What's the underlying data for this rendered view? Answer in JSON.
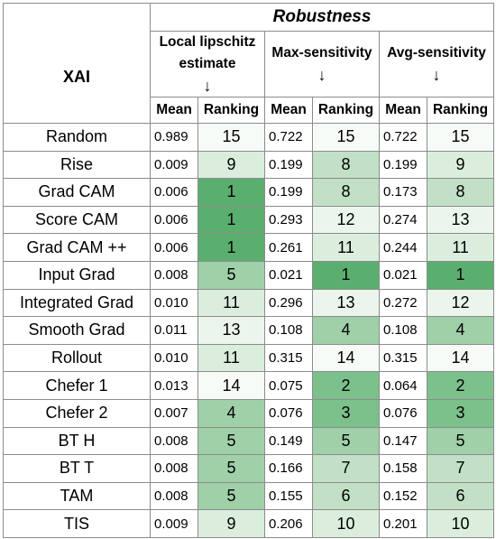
{
  "header": {
    "group_title": "Robustness",
    "xai_label": "XAI",
    "metrics": [
      {
        "name": "Local lipschitz estimate",
        "arrow": "↓"
      },
      {
        "name": "Max-sensitivity",
        "arrow": "↓"
      },
      {
        "name": "Avg-sensitivity",
        "arrow": "↓"
      }
    ],
    "mean_label": "Mean",
    "ranking_label": "Ranking"
  },
  "colors": {
    "rank_1": "#5aaf6e",
    "rank_2_3": "#7cc08b",
    "rank_4_5": "#9fd0a8",
    "rank_6_8": "#c1e0c6",
    "rank_9_11": "#dbeedd",
    "rank_12_13": "#ebf5ec",
    "rank_14_15": "#f7fbf7"
  },
  "rows": [
    {
      "method": "Random",
      "lle_mean": "0.989",
      "lle_rank": "15",
      "max_mean": "0.722",
      "max_rank": "15",
      "avg_mean": "0.722",
      "avg_rank": "15"
    },
    {
      "method": "Rise",
      "lle_mean": "0.009",
      "lle_rank": "9",
      "max_mean": "0.199",
      "max_rank": "8",
      "avg_mean": "0.199",
      "avg_rank": "9"
    },
    {
      "method": "Grad CAM",
      "lle_mean": "0.006",
      "lle_rank": "1",
      "max_mean": "0.199",
      "max_rank": "8",
      "avg_mean": "0.173",
      "avg_rank": "8"
    },
    {
      "method": "Score CAM",
      "lle_mean": "0.006",
      "lle_rank": "1",
      "max_mean": "0.293",
      "max_rank": "12",
      "avg_mean": "0.274",
      "avg_rank": "13"
    },
    {
      "method": "Grad CAM ++",
      "lle_mean": "0.006",
      "lle_rank": "1",
      "max_mean": "0.261",
      "max_rank": "11",
      "avg_mean": "0.244",
      "avg_rank": "11"
    },
    {
      "method": "Input Grad",
      "lle_mean": "0.008",
      "lle_rank": "5",
      "max_mean": "0.021",
      "max_rank": "1",
      "avg_mean": "0.021",
      "avg_rank": "1"
    },
    {
      "method": "Integrated Grad",
      "lle_mean": "0.010",
      "lle_rank": "11",
      "max_mean": "0.296",
      "max_rank": "13",
      "avg_mean": "0.272",
      "avg_rank": "12"
    },
    {
      "method": "Smooth Grad",
      "lle_mean": "0.011",
      "lle_rank": "13",
      "max_mean": "0.108",
      "max_rank": "4",
      "avg_mean": "0.108",
      "avg_rank": "4"
    },
    {
      "method": "Rollout",
      "lle_mean": "0.010",
      "lle_rank": "11",
      "max_mean": "0.315",
      "max_rank": "14",
      "avg_mean": "0.315",
      "avg_rank": "14"
    },
    {
      "method": "Chefer 1",
      "lle_mean": "0.013",
      "lle_rank": "14",
      "max_mean": "0.075",
      "max_rank": "2",
      "avg_mean": "0.064",
      "avg_rank": "2"
    },
    {
      "method": "Chefer 2",
      "lle_mean": "0.007",
      "lle_rank": "4",
      "max_mean": "0.076",
      "max_rank": "3",
      "avg_mean": "0.076",
      "avg_rank": "3"
    },
    {
      "method": "BT H",
      "lle_mean": "0.008",
      "lle_rank": "5",
      "max_mean": "0.149",
      "max_rank": "5",
      "avg_mean": "0.147",
      "avg_rank": "5"
    },
    {
      "method": "BT T",
      "lle_mean": "0.008",
      "lle_rank": "5",
      "max_mean": "0.166",
      "max_rank": "7",
      "avg_mean": "0.158",
      "avg_rank": "7"
    },
    {
      "method": "TAM",
      "lle_mean": "0.008",
      "lle_rank": "5",
      "max_mean": "0.155",
      "max_rank": "6",
      "avg_mean": "0.152",
      "avg_rank": "6"
    },
    {
      "method": "TIS",
      "lle_mean": "0.009",
      "lle_rank": "9",
      "max_mean": "0.206",
      "max_rank": "10",
      "avg_mean": "0.201",
      "avg_rank": "10"
    }
  ]
}
